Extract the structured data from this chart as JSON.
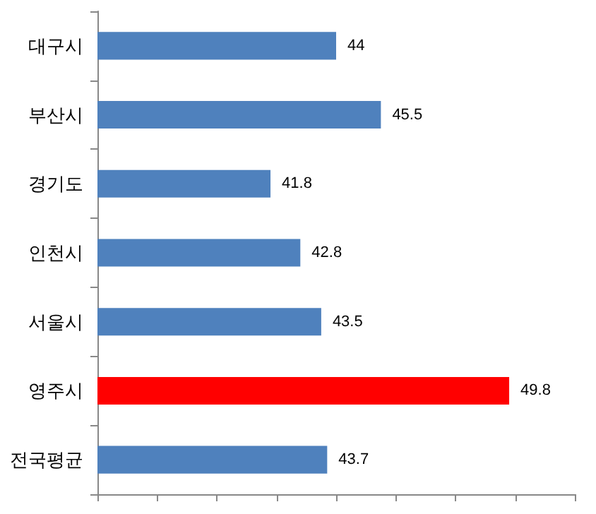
{
  "chart_data": {
    "type": "bar",
    "orientation": "horizontal",
    "categories": [
      "대구시",
      "부산시",
      "경기도",
      "인천시",
      "서울시",
      "영주시",
      "전국평균"
    ],
    "values": [
      44,
      45.5,
      41.8,
      42.8,
      43.5,
      49.8,
      43.7
    ],
    "colors": [
      "#4f81bd",
      "#4f81bd",
      "#4f81bd",
      "#4f81bd",
      "#4f81bd",
      "#ff0000",
      "#4f81bd"
    ],
    "xlim": [
      36,
      52
    ],
    "xticks": [
      {
        "value": 36,
        "label": null
      },
      {
        "value": 38,
        "label": null
      },
      {
        "value": 40,
        "label": null
      },
      {
        "value": 42,
        "label": null
      },
      {
        "value": 44,
        "label": null
      },
      {
        "value": 46,
        "label": null
      },
      {
        "value": 48,
        "label": null
      },
      {
        "value": 50,
        "label": null
      },
      {
        "value": 52,
        "label": null
      }
    ],
    "tick_labels": "y",
    "data_labels": true
  }
}
